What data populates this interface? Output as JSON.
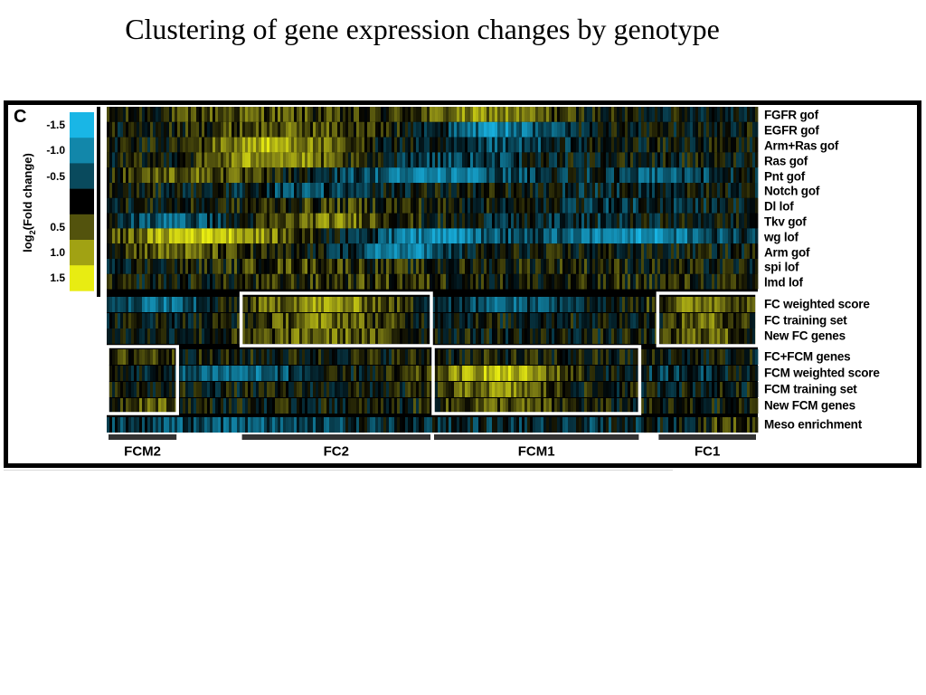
{
  "slide": {
    "title": "Clustering of gene expression changes by genotype"
  },
  "colors": {
    "negative": "#19b6e6",
    "negative_mid": "#0e6f8c",
    "neutral": "#000000",
    "positive_mid": "#7d7d14",
    "positive": "#e8ec12",
    "box_outline": "#ffffff"
  },
  "chart_data": {
    "type": "heatmap",
    "panel_label": "C",
    "colorbar": {
      "label_main": "log",
      "label_sub": "2",
      "label_rest": "(Fold change)",
      "ticks": [
        "-1.5",
        "-1.0",
        "-0.5",
        "0.5",
        "1.0",
        "1.5"
      ],
      "steps": [
        -1.5,
        -1.0,
        -0.5,
        0,
        0.5,
        1.0,
        1.5
      ]
    },
    "genotype_rows": [
      {
        "name": "FGFR gof",
        "peaks": [
          [
            0.58,
            0.8,
            0.12
          ],
          [
            0.22,
            0.5,
            0.14
          ]
        ]
      },
      {
        "name": "EGFR gof",
        "peaks": [
          [
            0.6,
            -1.0,
            0.08
          ],
          [
            0.28,
            0.5,
            0.15
          ]
        ]
      },
      {
        "name": "Arm+Ras gof",
        "peaks": [
          [
            0.25,
            1.1,
            0.1
          ],
          [
            0.6,
            -0.6,
            0.1
          ]
        ]
      },
      {
        "name": "Ras gof",
        "peaks": [
          [
            0.25,
            1.0,
            0.1
          ],
          [
            0.55,
            -0.4,
            0.12
          ]
        ]
      },
      {
        "name": "Pnt gof",
        "peaks": [
          [
            0.12,
            0.6,
            0.12
          ],
          [
            0.5,
            -0.9,
            0.15
          ],
          [
            0.85,
            -0.6,
            0.1
          ]
        ]
      },
      {
        "name": "Notch gof",
        "peaks": [
          [
            0.3,
            -0.5,
            0.1
          ],
          [
            0.75,
            -0.2,
            0.1
          ]
        ]
      },
      {
        "name": "Dl lof",
        "peaks": [
          [
            0.35,
            0.3,
            0.15
          ],
          [
            0.8,
            -0.3,
            0.12
          ]
        ]
      },
      {
        "name": "Tkv gof",
        "peaks": [
          [
            0.1,
            -0.7,
            0.08
          ],
          [
            0.35,
            0.7,
            0.1
          ],
          [
            0.7,
            -0.3,
            0.12
          ]
        ]
      },
      {
        "name": "wg lof",
        "peaks": [
          [
            0.15,
            1.4,
            0.12
          ],
          [
            0.5,
            -1.0,
            0.1
          ],
          [
            0.8,
            -1.1,
            0.15
          ]
        ]
      },
      {
        "name": "Arm gof",
        "peaks": [
          [
            0.1,
            0.6,
            0.1
          ],
          [
            0.45,
            -1.0,
            0.08
          ]
        ]
      },
      {
        "name": "spi lof",
        "peaks": [
          [
            0.3,
            0.4,
            0.15
          ],
          [
            0.7,
            0.2,
            0.15
          ]
        ]
      },
      {
        "name": "lmd lof",
        "peaks": [
          [
            0.4,
            0.3,
            0.2
          ],
          [
            0.85,
            0.2,
            0.1
          ]
        ]
      }
    ],
    "annotation_rows": [
      {
        "name": "FC weighted score",
        "peaks": [
          [
            0.08,
            -0.8,
            0.08
          ],
          [
            0.33,
            0.9,
            0.12
          ],
          [
            0.6,
            -0.6,
            0.1
          ],
          [
            0.92,
            0.8,
            0.08
          ]
        ]
      },
      {
        "name": "FC training set",
        "peaks": [
          [
            0.33,
            0.7,
            0.1
          ],
          [
            0.92,
            0.6,
            0.06
          ]
        ]
      },
      {
        "name": "New FC genes",
        "peaks": [
          [
            0.33,
            0.6,
            0.12
          ],
          [
            0.92,
            0.6,
            0.06
          ]
        ]
      },
      {
        "name": "FC+FCM genes",
        "peaks": [
          [
            0.06,
            0.4,
            0.05
          ],
          [
            0.5,
            0.1,
            0.3
          ]
        ]
      },
      {
        "name": "FCM weighted score",
        "peaks": [
          [
            0.2,
            -0.8,
            0.1
          ],
          [
            0.6,
            1.2,
            0.1
          ],
          [
            0.88,
            -0.3,
            0.1
          ]
        ]
      },
      {
        "name": "FCM training set",
        "peaks": [
          [
            0.6,
            0.8,
            0.08
          ]
        ]
      },
      {
        "name": "New FCM genes",
        "peaks": [
          [
            0.06,
            0.6,
            0.05
          ],
          [
            0.6,
            0.5,
            0.1
          ]
        ]
      },
      {
        "name": "Meso enrichment",
        "peaks": [
          [
            0.2,
            -0.6,
            0.2
          ],
          [
            0.7,
            -0.3,
            0.2
          ],
          [
            0.95,
            0.4,
            0.06
          ]
        ]
      }
    ],
    "clusters": [
      {
        "name": "FCM2",
        "from": 0.0,
        "to": 0.11
      },
      {
        "name": "FC2",
        "from": 0.205,
        "to": 0.5
      },
      {
        "name": "FCM1",
        "from": 0.5,
        "to": 0.82
      },
      {
        "name": "FC1",
        "from": 0.845,
        "to": 1.0
      }
    ]
  }
}
